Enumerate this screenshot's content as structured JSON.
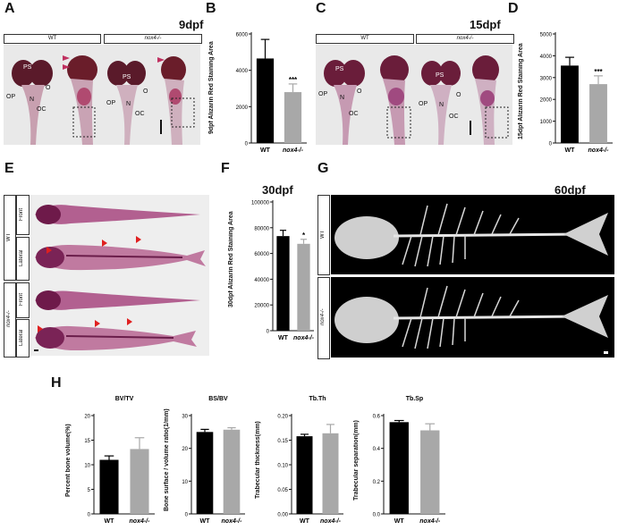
{
  "panels": {
    "A": {
      "letter": "A",
      "stage": "9dpf",
      "hdr_wt": "WT",
      "hdr_mut": "nox4-/-",
      "labels": {
        "ps": "PS",
        "op": "OP",
        "n": "N",
        "o": "O",
        "oc": "OC"
      }
    },
    "B": {
      "letter": "B"
    },
    "C": {
      "letter": "C",
      "stage": "15dpf",
      "hdr_wt": "WT",
      "hdr_mut": "nox4-/-",
      "labels": {
        "ps": "PS",
        "op": "OP",
        "n": "N",
        "o": "O",
        "oc": "OC"
      }
    },
    "D": {
      "letter": "D"
    },
    "E": {
      "letter": "E",
      "stage": "30dpf",
      "wt": "WT",
      "mut": "nox4-/-",
      "front": "Front",
      "lateral": "Lateral"
    },
    "F": {
      "letter": "F"
    },
    "G": {
      "letter": "G",
      "stage": "60dpf",
      "wt": "WT",
      "mut": "nox4-/-"
    },
    "H": {
      "letter": "H"
    }
  },
  "chart_data": [
    {
      "id": "B",
      "type": "bar",
      "categories": [
        "WT",
        "nox4-/-"
      ],
      "values": [
        4650,
        2800
      ],
      "errors": [
        1050,
        450
      ],
      "ylabel": "9dpf Alizarin Red Staining Area",
      "ylim": [
        0,
        6000
      ],
      "yticks": [
        0,
        2000,
        4000,
        6000
      ],
      "significance": "***",
      "colors": [
        "#000000",
        "#a8a8a8"
      ]
    },
    {
      "id": "D",
      "type": "bar",
      "categories": [
        "WT",
        "nox4-/-"
      ],
      "values": [
        3550,
        2700
      ],
      "errors": [
        380,
        380
      ],
      "ylabel": "15dpf Alizarin Red Staining Area",
      "ylim": [
        0,
        5000
      ],
      "yticks": [
        0,
        1000,
        2000,
        3000,
        4000,
        5000
      ],
      "significance": "***",
      "colors": [
        "#000000",
        "#a8a8a8"
      ]
    },
    {
      "id": "F",
      "type": "bar",
      "categories": [
        "WT",
        "nox4-/-"
      ],
      "values": [
        73500,
        67500
      ],
      "errors": [
        4500,
        3500
      ],
      "ylabel": "30dpf Alizarin Red Staining Area",
      "ylim": [
        0,
        100000
      ],
      "yticks": [
        0,
        20000,
        40000,
        60000,
        80000,
        100000
      ],
      "significance": "*",
      "colors": [
        "#000000",
        "#a8a8a8"
      ]
    },
    {
      "id": "H1",
      "type": "bar",
      "title": "BV/TV",
      "categories": [
        "WT",
        "nox4-/-"
      ],
      "values": [
        11,
        13.2
      ],
      "errors": [
        0.8,
        2.3
      ],
      "ylabel": "Percent bone volume(%)",
      "ylim": [
        0,
        20
      ],
      "yticks": [
        0,
        5,
        10,
        15,
        20
      ],
      "colors": [
        "#000000",
        "#a8a8a8"
      ]
    },
    {
      "id": "H2",
      "type": "bar",
      "title": "BS/BV",
      "categories": [
        "WT",
        "nox4-/-"
      ],
      "values": [
        25,
        25.7
      ],
      "errors": [
        0.8,
        0.6
      ],
      "ylabel": "Bone surface / volume ratio(1/mm)",
      "ylim": [
        0,
        30
      ],
      "yticks": [
        0,
        10,
        20,
        30
      ],
      "colors": [
        "#000000",
        "#a8a8a8"
      ]
    },
    {
      "id": "H3",
      "type": "bar",
      "title": "Tb.Th",
      "categories": [
        "WT",
        "nox4-/-"
      ],
      "values": [
        0.158,
        0.164
      ],
      "errors": [
        0.004,
        0.018
      ],
      "ylabel": "Trabecular thickness(mm)",
      "ylim": [
        0,
        0.2
      ],
      "yticks": [
        0.0,
        0.05,
        0.1,
        0.15,
        0.2
      ],
      "colors": [
        "#000000",
        "#a8a8a8"
      ]
    },
    {
      "id": "H4",
      "type": "bar",
      "title": "Tb.Sp",
      "categories": [
        "WT",
        "nox4-/-"
      ],
      "values": [
        0.56,
        0.51
      ],
      "errors": [
        0.01,
        0.04
      ],
      "ylabel": "Trabecular separation(mm)",
      "ylim": [
        0,
        0.6
      ],
      "yticks": [
        0.0,
        0.2,
        0.4,
        0.6
      ],
      "colors": [
        "#000000",
        "#a8a8a8"
      ]
    }
  ]
}
